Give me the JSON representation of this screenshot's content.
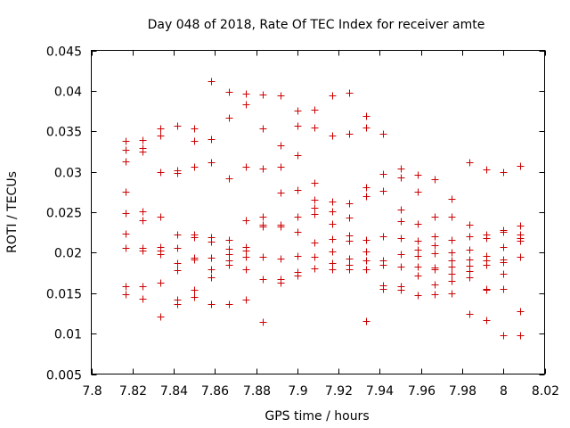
{
  "chart_data": {
    "type": "scatter",
    "title": "Day 048 of 2018, Rate Of TEC Index for receiver amte",
    "xlabel": "GPS time / hours",
    "ylabel": "ROTI / TECUs",
    "xlim": [
      7.8,
      8.02
    ],
    "ylim": [
      0.005,
      0.045
    ],
    "xticks": [
      7.8,
      7.82,
      7.84,
      7.86,
      7.88,
      7.9,
      7.92,
      7.94,
      7.96,
      7.98,
      8.0,
      8.02
    ],
    "xtick_labels": [
      "7.8",
      "7.82",
      "7.84",
      "7.86",
      "7.88",
      "7.9",
      "7.92",
      "7.94",
      "7.96",
      "7.98",
      "8",
      "8.02"
    ],
    "yticks": [
      0.005,
      0.01,
      0.015,
      0.02,
      0.025,
      0.03,
      0.035,
      0.04,
      0.045
    ],
    "ytick_labels": [
      "0.005",
      "0.01",
      "0.015",
      "0.02",
      "0.025",
      "0.03",
      "0.035",
      "0.04",
      "0.045"
    ],
    "marker": "+",
    "color": "#cc0000",
    "grid": false,
    "series": [
      {
        "name": "amte",
        "points": [
          [
            7.8167,
            0.0338
          ],
          [
            7.8167,
            0.0327
          ],
          [
            7.8167,
            0.0313
          ],
          [
            7.8167,
            0.0275
          ],
          [
            7.8167,
            0.0249
          ],
          [
            7.8167,
            0.0224
          ],
          [
            7.8167,
            0.0206
          ],
          [
            7.8167,
            0.0159
          ],
          [
            7.8167,
            0.0149
          ],
          [
            7.825,
            0.0339
          ],
          [
            7.825,
            0.0329
          ],
          [
            7.825,
            0.0325
          ],
          [
            7.825,
            0.0251
          ],
          [
            7.825,
            0.024
          ],
          [
            7.825,
            0.0206
          ],
          [
            7.825,
            0.0203
          ],
          [
            7.825,
            0.0159
          ],
          [
            7.825,
            0.0143
          ],
          [
            7.8333,
            0.0354
          ],
          [
            7.8333,
            0.0345
          ],
          [
            7.8333,
            0.03
          ],
          [
            7.8333,
            0.0244
          ],
          [
            7.8333,
            0.0207
          ],
          [
            7.8333,
            0.0203
          ],
          [
            7.8333,
            0.0198
          ],
          [
            7.8333,
            0.0163
          ],
          [
            7.8333,
            0.0121
          ],
          [
            7.8417,
            0.0357
          ],
          [
            7.8417,
            0.0302
          ],
          [
            7.8417,
            0.0298
          ],
          [
            7.8417,
            0.0223
          ],
          [
            7.8417,
            0.0206
          ],
          [
            7.8417,
            0.0187
          ],
          [
            7.8417,
            0.0178
          ],
          [
            7.8417,
            0.0142
          ],
          [
            7.8417,
            0.0137
          ],
          [
            7.85,
            0.0354
          ],
          [
            7.85,
            0.0338
          ],
          [
            7.85,
            0.0306
          ],
          [
            7.85,
            0.0223
          ],
          [
            7.85,
            0.0219
          ],
          [
            7.85,
            0.0194
          ],
          [
            7.85,
            0.0192
          ],
          [
            7.85,
            0.0154
          ],
          [
            7.85,
            0.0145
          ],
          [
            7.8583,
            0.0412
          ],
          [
            7.8583,
            0.034
          ],
          [
            7.8583,
            0.0312
          ],
          [
            7.8583,
            0.0219
          ],
          [
            7.8583,
            0.0214
          ],
          [
            7.8583,
            0.0194
          ],
          [
            7.8583,
            0.018
          ],
          [
            7.8583,
            0.017
          ],
          [
            7.8583,
            0.0137
          ],
          [
            7.8667,
            0.0399
          ],
          [
            7.8667,
            0.0367
          ],
          [
            7.8667,
            0.0292
          ],
          [
            7.8667,
            0.0216
          ],
          [
            7.8667,
            0.0205
          ],
          [
            7.8667,
            0.0198
          ],
          [
            7.8667,
            0.0191
          ],
          [
            7.8667,
            0.0185
          ],
          [
            7.8667,
            0.0137
          ],
          [
            7.875,
            0.0397
          ],
          [
            7.875,
            0.0383
          ],
          [
            7.875,
            0.0306
          ],
          [
            7.875,
            0.024
          ],
          [
            7.875,
            0.0207
          ],
          [
            7.875,
            0.0203
          ],
          [
            7.875,
            0.0195
          ],
          [
            7.875,
            0.018
          ],
          [
            7.875,
            0.0142
          ],
          [
            7.8833,
            0.0395
          ],
          [
            7.8833,
            0.0354
          ],
          [
            7.8833,
            0.0304
          ],
          [
            7.8833,
            0.0244
          ],
          [
            7.8833,
            0.0235
          ],
          [
            7.8833,
            0.0232
          ],
          [
            7.8833,
            0.0195
          ],
          [
            7.8833,
            0.0167
          ],
          [
            7.8833,
            0.0114
          ],
          [
            7.8917,
            0.0394
          ],
          [
            7.8917,
            0.0333
          ],
          [
            7.8917,
            0.0306
          ],
          [
            7.8917,
            0.0274
          ],
          [
            7.8917,
            0.0235
          ],
          [
            7.8917,
            0.0232
          ],
          [
            7.8917,
            0.0193
          ],
          [
            7.8917,
            0.0167
          ],
          [
            7.8917,
            0.0163
          ],
          [
            7.9,
            0.0376
          ],
          [
            7.9,
            0.0357
          ],
          [
            7.9,
            0.032
          ],
          [
            7.9,
            0.0277
          ],
          [
            7.9,
            0.0244
          ],
          [
            7.9,
            0.0226
          ],
          [
            7.9,
            0.0196
          ],
          [
            7.9,
            0.0176
          ],
          [
            7.9,
            0.0172
          ],
          [
            7.9083,
            0.0377
          ],
          [
            7.9083,
            0.0355
          ],
          [
            7.9083,
            0.0286
          ],
          [
            7.9083,
            0.0265
          ],
          [
            7.9083,
            0.0256
          ],
          [
            7.9083,
            0.0248
          ],
          [
            7.9083,
            0.0213
          ],
          [
            7.9083,
            0.0195
          ],
          [
            7.9083,
            0.0181
          ],
          [
            7.9167,
            0.0394
          ],
          [
            7.9167,
            0.0345
          ],
          [
            7.9167,
            0.0263
          ],
          [
            7.9167,
            0.0251
          ],
          [
            7.9167,
            0.0236
          ],
          [
            7.9167,
            0.0217
          ],
          [
            7.9167,
            0.0202
          ],
          [
            7.9167,
            0.0187
          ],
          [
            7.9167,
            0.018
          ],
          [
            7.925,
            0.0398
          ],
          [
            7.925,
            0.0347
          ],
          [
            7.925,
            0.0261
          ],
          [
            7.925,
            0.0243
          ],
          [
            7.925,
            0.0221
          ],
          [
            7.925,
            0.0215
          ],
          [
            7.925,
            0.0193
          ],
          [
            7.925,
            0.0185
          ],
          [
            7.925,
            0.0179
          ],
          [
            7.9333,
            0.0369
          ],
          [
            7.9333,
            0.0355
          ],
          [
            7.9333,
            0.0281
          ],
          [
            7.9333,
            0.027
          ],
          [
            7.9333,
            0.0216
          ],
          [
            7.9333,
            0.0202
          ],
          [
            7.9333,
            0.019
          ],
          [
            7.9333,
            0.018
          ],
          [
            7.9333,
            0.0116
          ],
          [
            7.9417,
            0.0347
          ],
          [
            7.9417,
            0.0297
          ],
          [
            7.9417,
            0.0276
          ],
          [
            7.9417,
            0.022
          ],
          [
            7.9417,
            0.019
          ],
          [
            7.9417,
            0.0185
          ],
          [
            7.9417,
            0.016
          ],
          [
            7.9417,
            0.0155
          ],
          [
            7.95,
            0.0304
          ],
          [
            7.95,
            0.0293
          ],
          [
            7.95,
            0.0253
          ],
          [
            7.95,
            0.0239
          ],
          [
            7.95,
            0.0218
          ],
          [
            7.95,
            0.0198
          ],
          [
            7.95,
            0.0183
          ],
          [
            7.95,
            0.0159
          ],
          [
            7.95,
            0.0154
          ],
          [
            7.9583,
            0.0296
          ],
          [
            7.9583,
            0.0275
          ],
          [
            7.9583,
            0.0236
          ],
          [
            7.9583,
            0.0215
          ],
          [
            7.9583,
            0.0204
          ],
          [
            7.9583,
            0.0196
          ],
          [
            7.9583,
            0.0183
          ],
          [
            7.9583,
            0.0172
          ],
          [
            7.9583,
            0.0148
          ],
          [
            7.9667,
            0.0291
          ],
          [
            7.9667,
            0.0244
          ],
          [
            7.9667,
            0.022
          ],
          [
            7.9667,
            0.0209
          ],
          [
            7.9667,
            0.0199
          ],
          [
            7.9667,
            0.0182
          ],
          [
            7.9667,
            0.018
          ],
          [
            7.9667,
            0.0161
          ],
          [
            7.9667,
            0.0149
          ],
          [
            7.975,
            0.0266
          ],
          [
            7.975,
            0.0244
          ],
          [
            7.975,
            0.0216
          ],
          [
            7.975,
            0.02
          ],
          [
            7.975,
            0.019
          ],
          [
            7.975,
            0.0183
          ],
          [
            7.975,
            0.0174
          ],
          [
            7.975,
            0.0165
          ],
          [
            7.975,
            0.015
          ],
          [
            7.9833,
            0.0312
          ],
          [
            7.9833,
            0.0235
          ],
          [
            7.9833,
            0.022
          ],
          [
            7.9833,
            0.0204
          ],
          [
            7.9833,
            0.0192
          ],
          [
            7.9833,
            0.0184
          ],
          [
            7.9833,
            0.0177
          ],
          [
            7.9833,
            0.017
          ],
          [
            7.9833,
            0.0124
          ],
          [
            7.9917,
            0.0303
          ],
          [
            7.9917,
            0.0223
          ],
          [
            7.9917,
            0.0218
          ],
          [
            7.9917,
            0.0196
          ],
          [
            7.9917,
            0.0191
          ],
          [
            7.9917,
            0.0185
          ],
          [
            7.9917,
            0.0155
          ],
          [
            7.9917,
            0.0154
          ],
          [
            7.9917,
            0.0117
          ],
          [
            8.0,
            0.03
          ],
          [
            8.0,
            0.0228
          ],
          [
            8.0,
            0.0226
          ],
          [
            8.0,
            0.0207
          ],
          [
            8.0,
            0.0192
          ],
          [
            8.0,
            0.0188
          ],
          [
            8.0,
            0.0174
          ],
          [
            8.0,
            0.0155
          ],
          [
            8.0,
            0.0098
          ],
          [
            8.0083,
            0.0307
          ],
          [
            8.0083,
            0.0233
          ],
          [
            8.0083,
            0.0223
          ],
          [
            8.0083,
            0.0218
          ],
          [
            8.0083,
            0.0215
          ],
          [
            8.0083,
            0.0195
          ],
          [
            8.0083,
            0.0128
          ],
          [
            8.0083,
            0.0098
          ]
        ]
      }
    ]
  }
}
